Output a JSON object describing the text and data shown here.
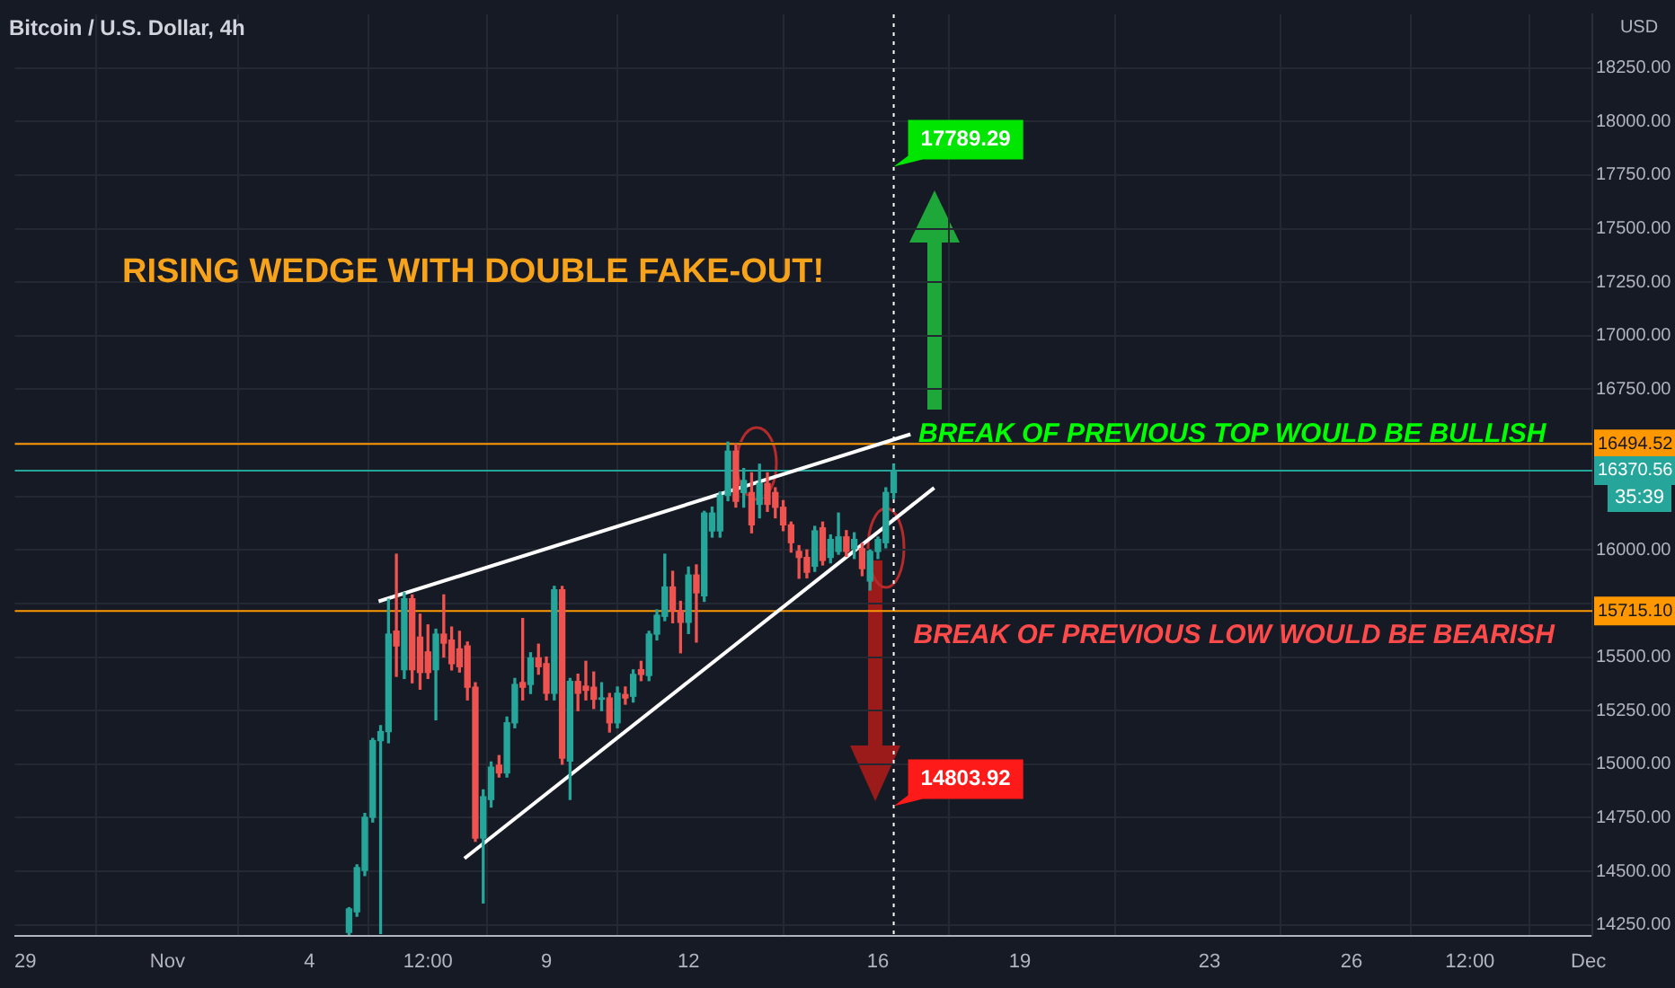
{
  "chart_data": {
    "type": "candlestick",
    "title": "Bitcoin / U.S. Dollar, 4h",
    "ylabel": "USD",
    "x": [
      "--11-04T20:00",
      "--11-05T00:00",
      "--11-05T04:00",
      "--11-05T08:00",
      "--11-05T12:00",
      "--11-05T16:00",
      "--11-05T20:00",
      "--11-06T00:00",
      "--11-06T04:00",
      "--11-06T08:00",
      "--11-06T12:00",
      "--11-06T16:00",
      "--11-06T20:00",
      "--11-07T00:00",
      "--11-07T04:00",
      "--11-07T08:00",
      "--11-07T12:00",
      "--11-07T16:00",
      "--11-07T20:00",
      "--11-08T00:00",
      "--11-08T04:00",
      "--11-08T08:00",
      "--11-08T12:00",
      "--11-08T16:00",
      "--11-08T20:00",
      "--11-09T00:00",
      "--11-09T04:00",
      "--11-09T08:00",
      "--11-09T12:00",
      "--11-09T16:00",
      "--11-09T20:00",
      "--11-10T00:00",
      "--11-10T04:00",
      "--11-10T08:00",
      "--11-10T12:00",
      "--11-10T16:00",
      "--11-10T20:00",
      "--11-11T00:00",
      "--11-11T04:00",
      "--11-11T08:00",
      "--11-11T12:00",
      "--11-11T16:00",
      "--11-11T20:00",
      "--11-12T00:00",
      "--11-12T04:00",
      "--11-12T08:00",
      "--11-12T12:00",
      "--11-12T16:00",
      "--11-12T20:00",
      "--11-13T00:00",
      "--11-13T04:00",
      "--11-13T08:00",
      "--11-13T12:00",
      "--11-13T16:00",
      "--11-13T20:00",
      "--11-14T00:00",
      "--11-14T04:00",
      "--11-14T08:00",
      "--11-14T12:00",
      "--11-14T16:00",
      "--11-14T20:00",
      "--11-15T00:00",
      "--11-15T04:00",
      "--11-15T08:00",
      "--11-15T12:00",
      "--11-15T16:00",
      "--11-15T20:00",
      "--11-16T00:00",
      "--11-16T04:00",
      "--11-16T08:00"
    ],
    "ohlc": [
      [
        14215,
        14330,
        14205,
        14324
      ],
      [
        14311,
        14530,
        14290,
        14517
      ],
      [
        14504,
        14770,
        14480,
        14752
      ],
      [
        14752,
        15120,
        14730,
        15110
      ],
      [
        15110,
        15180,
        14210,
        15152
      ],
      [
        15152,
        15770,
        15100,
        15607
      ],
      [
        15621,
        15980,
        15410,
        15552
      ],
      [
        15441,
        15800,
        15400,
        15772
      ],
      [
        15772,
        15790,
        15380,
        15441
      ],
      [
        15593,
        15700,
        15350,
        15428
      ],
      [
        15524,
        15650,
        15400,
        15428
      ],
      [
        15441,
        15630,
        15207,
        15607
      ],
      [
        15607,
        15790,
        15500,
        15565
      ],
      [
        15579,
        15640,
        15440,
        15469
      ],
      [
        15538,
        15620,
        15430,
        15455
      ],
      [
        15552,
        15570,
        15300,
        15359
      ],
      [
        15359,
        15380,
        14640,
        14655
      ],
      [
        14655,
        14880,
        14352,
        14848
      ],
      [
        14835,
        15010,
        14800,
        14986
      ],
      [
        14995,
        15040,
        14940,
        14959
      ],
      [
        14959,
        15220,
        14940,
        15193
      ],
      [
        15193,
        15400,
        15170,
        15372
      ],
      [
        15381,
        15680,
        15300,
        15359
      ],
      [
        15372,
        15520,
        15330,
        15496
      ],
      [
        15496,
        15560,
        15420,
        15455
      ],
      [
        15469,
        15500,
        15300,
        15331
      ],
      [
        15331,
        15830,
        15300,
        15814
      ],
      [
        15814,
        15830,
        15000,
        15028
      ],
      [
        15014,
        15400,
        14835,
        15386
      ],
      [
        15386,
        15420,
        15250,
        15331
      ],
      [
        15364,
        15480,
        15300,
        15345
      ],
      [
        15359,
        15430,
        15260,
        15303
      ],
      [
        15303,
        15380,
        15250,
        15309
      ],
      [
        15309,
        15330,
        15150,
        15193
      ],
      [
        15193,
        15360,
        15170,
        15331
      ],
      [
        15325,
        15360,
        15280,
        15309
      ],
      [
        15317,
        15440,
        15290,
        15419
      ],
      [
        15441,
        15480,
        15390,
        15419
      ],
      [
        15414,
        15620,
        15390,
        15607
      ],
      [
        15607,
        15720,
        15580,
        15695
      ],
      [
        15690,
        15980,
        15670,
        15827
      ],
      [
        15827,
        15900,
        15660,
        15717
      ],
      [
        15717,
        15760,
        15520,
        15662
      ],
      [
        15662,
        15920,
        15610,
        15883
      ],
      [
        15883,
        15930,
        15570,
        15800
      ],
      [
        15786,
        16180,
        15760,
        16172
      ],
      [
        16089,
        16200,
        16060,
        16172
      ],
      [
        16089,
        16270,
        16060,
        16255
      ],
      [
        16255,
        16503,
        16230,
        16461
      ],
      [
        16461,
        16495,
        16200,
        16227
      ],
      [
        16268,
        16380,
        16200,
        16324
      ],
      [
        16268,
        16360,
        16080,
        16117
      ],
      [
        16213,
        16400,
        16150,
        16310
      ],
      [
        16310,
        16360,
        16180,
        16213
      ],
      [
        16268,
        16290,
        16150,
        16199
      ],
      [
        16199,
        16230,
        16090,
        16117
      ],
      [
        16117,
        16130,
        15990,
        16034
      ],
      [
        15993,
        16020,
        15868,
        15965
      ],
      [
        15965,
        16000,
        15870,
        15896
      ],
      [
        15924,
        16110,
        15900,
        16089
      ],
      [
        16103,
        16130,
        15930,
        15951
      ],
      [
        15965,
        16070,
        15940,
        16049
      ],
      [
        15993,
        16172,
        15980,
        16061
      ],
      [
        16061,
        16090,
        15970,
        15993
      ],
      [
        16006,
        16080,
        15960,
        16049
      ],
      [
        16006,
        16030,
        15880,
        15913
      ],
      [
        15855,
        16000,
        15813,
        15993
      ],
      [
        15993,
        16060,
        15960,
        16049
      ],
      [
        16034,
        16290,
        16010,
        16268
      ],
      [
        16268,
        16400,
        16240,
        16370.56
      ]
    ],
    "series": [
      {
        "type": "line",
        "color": "#ffffff",
        "x": [
          "--11-05T11:00",
          "--11-16T16:30"
        ],
        "values": [
          15760,
          16540
        ]
      },
      {
        "type": "line",
        "color": "#ffffff",
        "x": [
          "--11-07T06:30",
          "--11-17T04:30"
        ],
        "values": [
          14560,
          16290
        ]
      }
    ],
    "xlim": [
      "--10-28T18:40",
      "--12-01T02:00"
    ],
    "xticks": [
      {
        "value": "--10-29",
        "label": "29"
      },
      {
        "value": "--11-01",
        "label": "Nov"
      },
      {
        "value": "--11-04",
        "label": "4"
      },
      {
        "value": "--11-06T12:00",
        "label": "12:00"
      },
      {
        "value": "--11-09",
        "label": "9"
      },
      {
        "value": "--11-12",
        "label": "12"
      },
      {
        "value": "--11-16",
        "label": "16"
      },
      {
        "value": "--11-19",
        "label": "19"
      },
      {
        "value": "--11-23",
        "label": "23"
      },
      {
        "value": "--11-26",
        "label": "26"
      },
      {
        "value": "--11-28T12:00",
        "label": "12:00"
      },
      {
        "value": "--12-01",
        "label": "Dec"
      }
    ],
    "ylim": [
      14200,
      18500
    ],
    "yticks": [
      {
        "value": 14250,
        "label": "14250.00"
      },
      {
        "value": 14500,
        "label": "14500.00"
      },
      {
        "value": 14750,
        "label": "14750.00"
      },
      {
        "value": 15000,
        "label": "15000.00"
      },
      {
        "value": 15250,
        "label": "15250.00"
      },
      {
        "value": 15500,
        "label": "15500.00"
      },
      {
        "value": 15750,
        "label": null
      },
      {
        "value": 16000,
        "label": "16000.00"
      },
      {
        "value": 16250,
        "label": null
      },
      {
        "value": 16500,
        "label": null
      },
      {
        "value": 16750,
        "label": "16750.00"
      },
      {
        "value": 17000,
        "label": "17000.00"
      },
      {
        "value": 17250,
        "label": "17250.00"
      },
      {
        "value": 17500,
        "label": "17500.00"
      },
      {
        "value": 17750,
        "label": "17750.00"
      },
      {
        "value": 18000,
        "label": "18000.00"
      },
      {
        "value": 18250,
        "label": "18250.00"
      }
    ],
    "ref_lines": [
      {
        "axis": "y",
        "value": 16494.52,
        "label": "16494.52",
        "color": "#ff9800"
      },
      {
        "axis": "y",
        "value": 16370.56,
        "label": "16370.56",
        "color": "#26a69a"
      },
      {
        "axis": "y",
        "value": 15715.1,
        "label": "15715.10",
        "color": "#ff9800"
      },
      {
        "axis": "x",
        "value": "--11-16T08:00",
        "color": "#ffffff",
        "line_style": "dotted"
      }
    ],
    "annotations": [
      "RISING WEDGE WITH DOUBLE FAKE-OUT!",
      {
        "text": "BREAK OF PREVIOUS TOP WOULD BE BULLISH",
        "x": "--11-16T20:30",
        "y": 16494.52
      },
      {
        "text": "BREAK OF PREVIOUS LOW WOULD BE BEARISH",
        "x": "--11-16T18:00",
        "y": 15715.1
      },
      {
        "text": "17789.29",
        "x": "--11-16T08:00",
        "y": 17789.29
      },
      {
        "text": "14803.92",
        "x": "--11-16T08:00",
        "y": 14803.92
      },
      "35:39"
    ],
    "grid": true,
    "legend": false,
    "marker": "none",
    "line_style": "solid"
  }
}
